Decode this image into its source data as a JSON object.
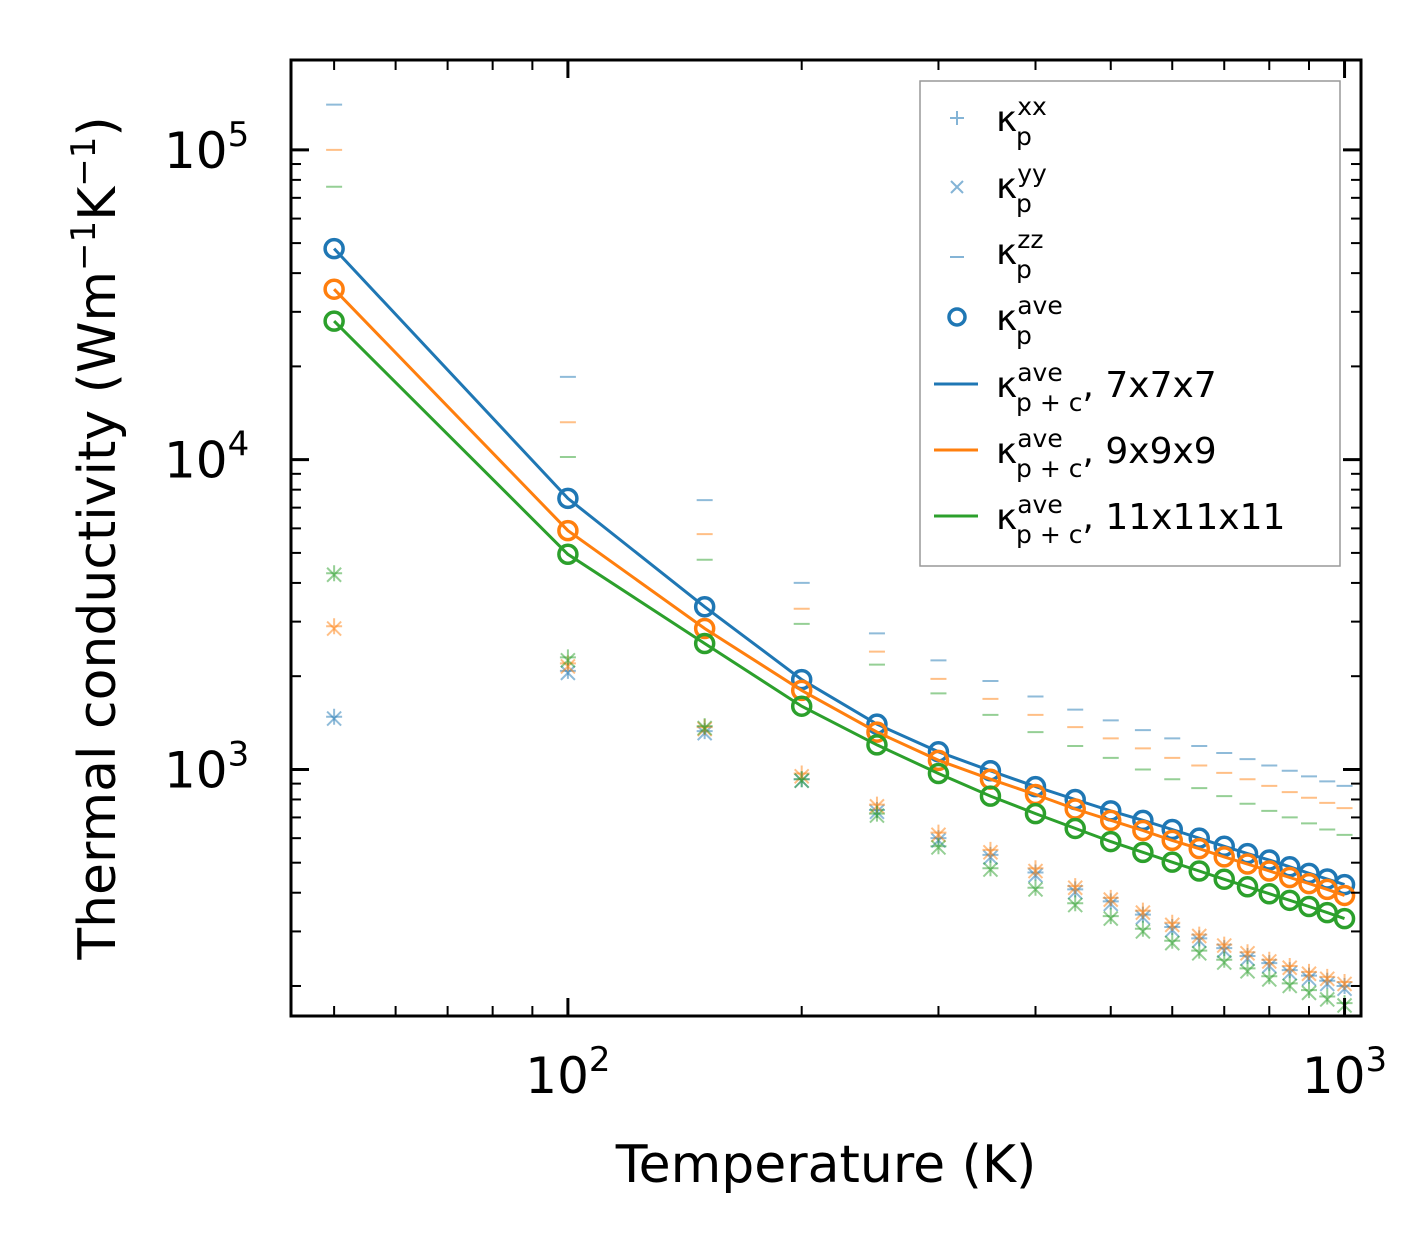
{
  "chart_data": {
    "type": "scatter",
    "title": "",
    "xlabel": "Temperature (K)",
    "ylabel_main": "Thermal conductivity (Wm",
    "ylabel_mid": "K",
    "ylabel_end": ")",
    "ylabel_exp": "−1",
    "xscale": "log",
    "yscale": "log",
    "xlim": [
      44,
      1050
    ],
    "ylim": [
      160,
      195000
    ],
    "x_major_ticks": [
      {
        "value": 100,
        "base": "10",
        "exp": "2"
      },
      {
        "value": 1000,
        "base": "10",
        "exp": "3"
      }
    ],
    "y_major_ticks": [
      {
        "value": 1000,
        "base": "10",
        "exp": "3"
      },
      {
        "value": 10000,
        "base": "10",
        "exp": "4"
      },
      {
        "value": 100000,
        "base": "10",
        "exp": "5"
      }
    ],
    "x": [
      50,
      100,
      150,
      200,
      250,
      300,
      350,
      400,
      450,
      500,
      550,
      600,
      650,
      700,
      750,
      800,
      850,
      900,
      950,
      1000
    ],
    "colors": {
      "blue": "#1f77b4",
      "orange": "#ff7f0e",
      "green": "#2ca02c"
    },
    "legend_position": "upper right",
    "legend": [
      {
        "marker": "+",
        "base": "κ",
        "sup": "xx",
        "sub": "p",
        "suffix": ""
      },
      {
        "marker": "x",
        "base": "κ",
        "sup": "yy",
        "sub": "p",
        "suffix": ""
      },
      {
        "marker": "_",
        "base": "κ",
        "sup": "zz",
        "sub": "p",
        "suffix": ""
      },
      {
        "marker": "o",
        "base": "κ",
        "sup": "ave",
        "sub": "p",
        "suffix": ""
      },
      {
        "marker": "line",
        "color": "#1f77b4",
        "base": "κ",
        "sup": "ave",
        "sub": "p + c",
        "suffix": ", 7x7x7"
      },
      {
        "marker": "line",
        "color": "#ff7f0e",
        "base": "κ",
        "sup": "ave",
        "sub": "p + c",
        "suffix": ", 9x9x9"
      },
      {
        "marker": "line",
        "color": "#2ca02c",
        "base": "κ",
        "sup": "ave",
        "sub": "p + c",
        "suffix": ", 11x11x11"
      }
    ],
    "series": [
      {
        "name": "7x7x7",
        "color": "#1f77b4",
        "kxx": [
          1480,
          2080,
          1330,
          930,
          740,
          600,
          530,
          465,
          410,
          375,
          340,
          310,
          285,
          265,
          250,
          237,
          225,
          216,
          208,
          200
        ],
        "kyy": [
          1460,
          2050,
          1310,
          920,
          730,
          590,
          520,
          455,
          402,
          368,
          333,
          303,
          280,
          260,
          245,
          232,
          220,
          211,
          203,
          196
        ],
        "kzz": [
          140000,
          18500,
          7400,
          4000,
          2750,
          2250,
          1930,
          1720,
          1560,
          1440,
          1340,
          1260,
          1190,
          1130,
          1080,
          1030,
          990,
          950,
          915,
          885
        ],
        "kave": [
          48000,
          7500,
          3350,
          1950,
          1400,
          1140,
          990,
          880,
          800,
          735,
          685,
          640,
          600,
          565,
          535,
          510,
          485,
          462,
          443,
          425
        ],
        "kpc": [
          48000,
          7500,
          3350,
          1950,
          1400,
          1140,
          990,
          880,
          800,
          735,
          685,
          640,
          600,
          565,
          535,
          510,
          485,
          462,
          443,
          425
        ]
      },
      {
        "name": "9x9x9",
        "color": "#ff7f0e",
        "kxx": [
          2900,
          2200,
          1370,
          970,
          770,
          625,
          550,
          480,
          420,
          385,
          350,
          320,
          293,
          272,
          257,
          243,
          232,
          222,
          214,
          206
        ],
        "kyy": [
          2850,
          2150,
          1350,
          950,
          760,
          615,
          540,
          470,
          415,
          380,
          345,
          315,
          290,
          270,
          255,
          240,
          229,
          219,
          211,
          203
        ],
        "kzz": [
          100000,
          13200,
          5750,
          3300,
          2400,
          1960,
          1690,
          1500,
          1370,
          1260,
          1170,
          1090,
          1030,
          975,
          930,
          885,
          845,
          810,
          780,
          750
        ],
        "kave": [
          35500,
          5900,
          2850,
          1800,
          1320,
          1070,
          930,
          830,
          745,
          685,
          635,
          590,
          555,
          522,
          495,
          470,
          448,
          428,
          410,
          392
        ],
        "kpc": [
          35500,
          5900,
          2850,
          1800,
          1320,
          1070,
          930,
          830,
          745,
          685,
          635,
          590,
          555,
          522,
          495,
          470,
          448,
          428,
          410,
          392
        ]
      },
      {
        "name": "11x11x11",
        "color": "#2ca02c",
        "kxx": [
          4300,
          2300,
          1380,
          930,
          720,
          565,
          480,
          415,
          370,
          336,
          306,
          280,
          260,
          243,
          228,
          215,
          204,
          194,
          185,
          176
        ],
        "kyy": [
          4250,
          2250,
          1360,
          920,
          710,
          560,
          475,
          410,
          365,
          330,
          300,
          275,
          255,
          238,
          223,
          210,
          200,
          190,
          181,
          173
        ],
        "kzz": [
          76000,
          10200,
          4750,
          2950,
          2180,
          1760,
          1500,
          1320,
          1190,
          1090,
          1000,
          930,
          870,
          820,
          775,
          735,
          700,
          670,
          640,
          615
        ],
        "kave": [
          28000,
          4950,
          2550,
          1600,
          1200,
          970,
          820,
          720,
          645,
          585,
          540,
          502,
          470,
          442,
          418,
          397,
          378,
          361,
          345,
          330
        ],
        "kpc": [
          28000,
          4950,
          2550,
          1600,
          1200,
          970,
          820,
          720,
          645,
          585,
          540,
          502,
          470,
          442,
          418,
          397,
          378,
          361,
          345,
          330
        ]
      }
    ]
  }
}
